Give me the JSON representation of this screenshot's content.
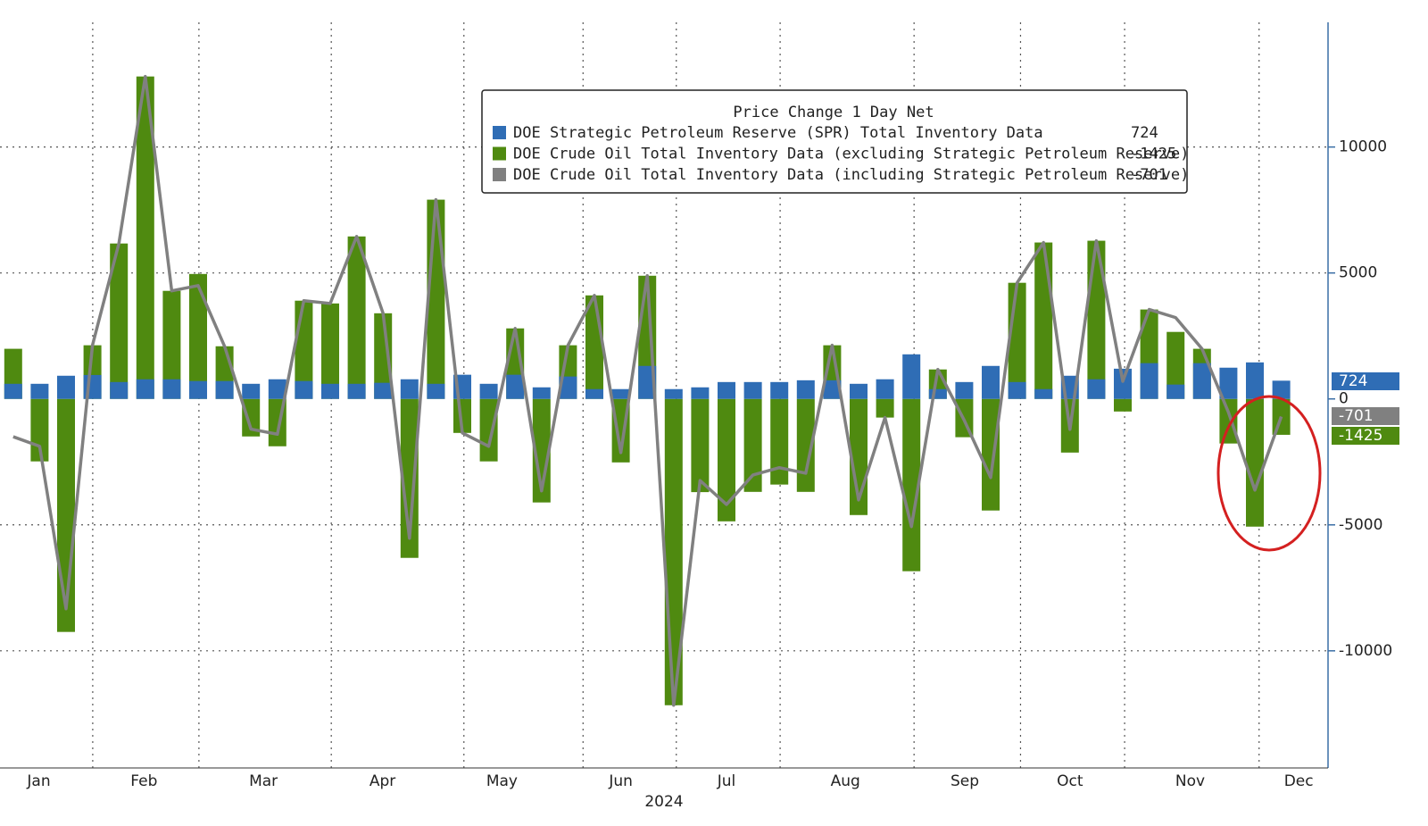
{
  "chart_data": {
    "type": "bar",
    "legend_title": "Price Change 1 Day Net",
    "x_label": "2024",
    "categories": [
      null,
      null,
      null,
      null,
      null,
      null,
      null,
      null,
      null,
      null,
      null,
      null,
      null,
      null,
      null,
      null,
      null,
      null,
      null,
      null,
      null,
      null,
      null,
      null,
      null,
      null,
      null,
      null,
      null,
      null,
      null,
      null,
      null,
      null,
      null,
      null,
      null,
      null,
      null,
      null,
      null,
      null,
      null,
      null,
      null,
      null,
      null,
      null,
      null
    ],
    "series": [
      {
        "name": "DOE Strategic Petroleum Reserve (SPR) Total Inventory Data",
        "color": "#2f6db5",
        "kind": "bar",
        "values": [
          600,
          600,
          920,
          950,
          670,
          780,
          780,
          710,
          710,
          600,
          780,
          710,
          600,
          600,
          640,
          780,
          600,
          960,
          600,
          960,
          460,
          890,
          390,
          390,
          1310,
          390,
          460,
          670,
          670,
          670,
          740,
          740,
          600,
          780,
          1770,
          390,
          670,
          1310,
          670,
          390,
          920,
          780,
          1200,
          1420,
          570,
          1420,
          1240,
          1450,
          724
        ]
      },
      {
        "name": "DOE Crude Oil Total Inventory Data (excluding Strategic Petroleum Reserve)",
        "color": "#4f8a10",
        "kind": "bar",
        "values": [
          1990,
          -2480,
          -9250,
          2130,
          6170,
          12800,
          4290,
          4960,
          2090,
          -1490,
          -1880,
          3900,
          3790,
          6450,
          3400,
          -6310,
          7910,
          -1350,
          -2480,
          2800,
          -4110,
          2130,
          4110,
          -2520,
          4890,
          -12160,
          -3700,
          -4860,
          -3690,
          -3400,
          -3690,
          2130,
          -4610,
          -740,
          -6840,
          1170,
          -1520,
          -4430,
          4610,
          6210,
          -2130,
          6280,
          -500,
          3550,
          2660,
          1990,
          -1770,
          -5070,
          -1425
        ]
      },
      {
        "name": "DOE Crude Oil Total Inventory Data (including Strategic Petroleum Reserve)",
        "color": "#808080",
        "kind": "line",
        "values": [
          -1500,
          -1880,
          -8330,
          2130,
          6170,
          12800,
          4290,
          4500,
          2090,
          -1200,
          -1400,
          3900,
          3790,
          6450,
          3400,
          -5530,
          7910,
          -1350,
          -1880,
          2800,
          -3650,
          2130,
          4110,
          -2130,
          4890,
          -12160,
          -3240,
          -4190,
          -3020,
          -2730,
          -2950,
          2130,
          -4010,
          -740,
          -5070,
          1170,
          -850,
          -3120,
          4610,
          6210,
          -1210,
          6280,
          700,
          3550,
          3230,
          1990,
          -530,
          -3620,
          -701
        ]
      }
    ],
    "ylim": [
      -14650,
      14950
    ],
    "yticks": [
      -10000,
      -5000,
      0,
      5000,
      10000
    ],
    "xlim": [
      -0.5,
      49.77
    ],
    "xticks": [
      {
        "value": 0.97,
        "label": "Jan"
      },
      {
        "value": 4.95,
        "label": "Feb"
      },
      {
        "value": 9.47,
        "label": "Mar"
      },
      {
        "value": 13.98,
        "label": "Apr"
      },
      {
        "value": 18.5,
        "label": "May"
      },
      {
        "value": 23.0,
        "label": "Jun"
      },
      {
        "value": 27.0,
        "label": "Jul"
      },
      {
        "value": 31.5,
        "label": "Aug"
      },
      {
        "value": 36.02,
        "label": "Sep"
      },
      {
        "value": 40.0,
        "label": "Oct"
      },
      {
        "value": 44.55,
        "label": "Nov"
      },
      {
        "value": 48.66,
        "label": "Dec"
      }
    ],
    "xgrid": [
      3.01,
      7.03,
      12.04,
      17.06,
      21.57,
      25.1,
      29.03,
      34.1,
      38.13,
      42.07,
      47.16
    ],
    "grid": true
  }
}
